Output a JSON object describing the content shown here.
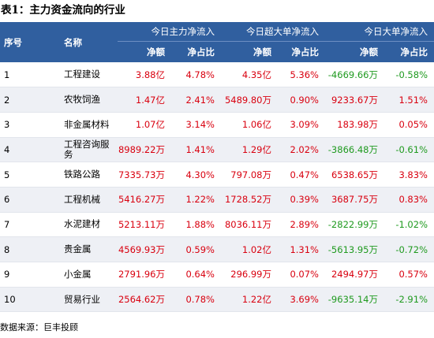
{
  "title": "表1：主力资金流向的行业",
  "columns": {
    "no": "序号",
    "name": "名称",
    "groups": [
      "今日主力净流入",
      "今日超大单净流入",
      "今日大单净流入"
    ],
    "net_amount": "净额",
    "net_ratio": "净占比"
  },
  "rows": [
    {
      "no": "1",
      "name": "工程建设",
      "main_amt": "3.88亿",
      "main_pct": "4.78%",
      "xl_amt": "4.35亿",
      "xl_pct": "5.36%",
      "l_amt": "-4669.66万",
      "l_pct": "-0.58%"
    },
    {
      "no": "2",
      "name": "农牧饲渔",
      "main_amt": "1.47亿",
      "main_pct": "2.41%",
      "xl_amt": "5489.80万",
      "xl_pct": "0.90%",
      "l_amt": "9233.67万",
      "l_pct": "1.51%"
    },
    {
      "no": "3",
      "name": "非金属材料",
      "main_amt": "1.07亿",
      "main_pct": "3.14%",
      "xl_amt": "1.06亿",
      "xl_pct": "3.09%",
      "l_amt": "183.98万",
      "l_pct": "0.05%"
    },
    {
      "no": "4",
      "name": "工程咨询服务",
      "main_amt": "8989.22万",
      "main_pct": "1.41%",
      "xl_amt": "1.29亿",
      "xl_pct": "2.02%",
      "l_amt": "-3866.48万",
      "l_pct": "-0.61%"
    },
    {
      "no": "5",
      "name": "铁路公路",
      "main_amt": "7335.73万",
      "main_pct": "4.30%",
      "xl_amt": "797.08万",
      "xl_pct": "0.47%",
      "l_amt": "6538.65万",
      "l_pct": "3.83%"
    },
    {
      "no": "6",
      "name": "工程机械",
      "main_amt": "5416.27万",
      "main_pct": "1.22%",
      "xl_amt": "1728.52万",
      "xl_pct": "0.39%",
      "l_amt": "3687.75万",
      "l_pct": "0.83%"
    },
    {
      "no": "7",
      "name": "水泥建材",
      "main_amt": "5213.11万",
      "main_pct": "1.88%",
      "xl_amt": "8036.11万",
      "xl_pct": "2.89%",
      "l_amt": "-2822.99万",
      "l_pct": "-1.02%"
    },
    {
      "no": "8",
      "name": "贵金属",
      "main_amt": "4569.93万",
      "main_pct": "0.59%",
      "xl_amt": "1.02亿",
      "xl_pct": "1.31%",
      "l_amt": "-5613.95万",
      "l_pct": "-0.72%"
    },
    {
      "no": "9",
      "name": "小金属",
      "main_amt": "2791.96万",
      "main_pct": "0.64%",
      "xl_amt": "296.99万",
      "xl_pct": "0.07%",
      "l_amt": "2494.97万",
      "l_pct": "0.57%"
    },
    {
      "no": "10",
      "name": "贸易行业",
      "main_amt": "2564.62万",
      "main_pct": "0.78%",
      "xl_amt": "1.22亿",
      "xl_pct": "3.69%",
      "l_amt": "-9635.14万",
      "l_pct": "-2.91%"
    }
  ],
  "source": "数据来源：巨丰投顾",
  "colors": {
    "header_bg": "#305f9f",
    "positive": "#d9000f",
    "negative": "#1f9a1f",
    "stripe": "#eef0f5"
  }
}
